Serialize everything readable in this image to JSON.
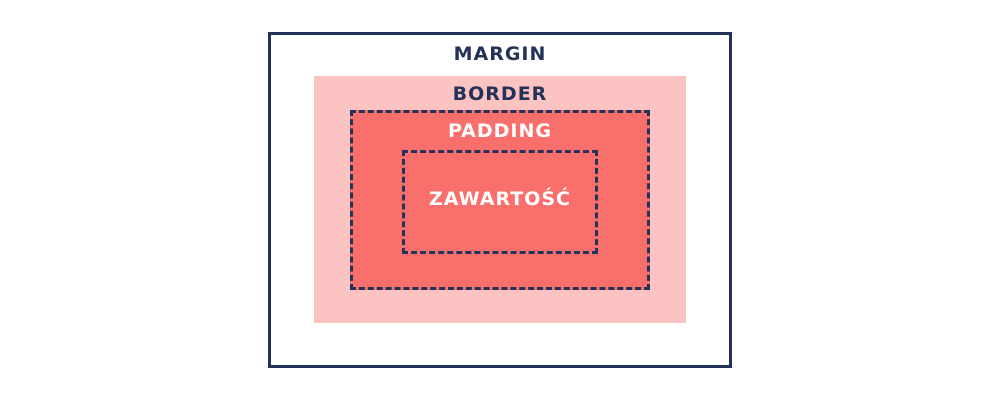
{
  "diagram": {
    "labels": {
      "margin": "MARGIN",
      "border": "BORDER",
      "padding": "PADDING",
      "content": "ZAWARTOŚĆ"
    },
    "colors": {
      "outline": "#24325a",
      "border_fill": "#fbc3c1",
      "padding_fill": "#f96f6b",
      "content_text": "#ffffff",
      "background": "#ffffff"
    }
  }
}
